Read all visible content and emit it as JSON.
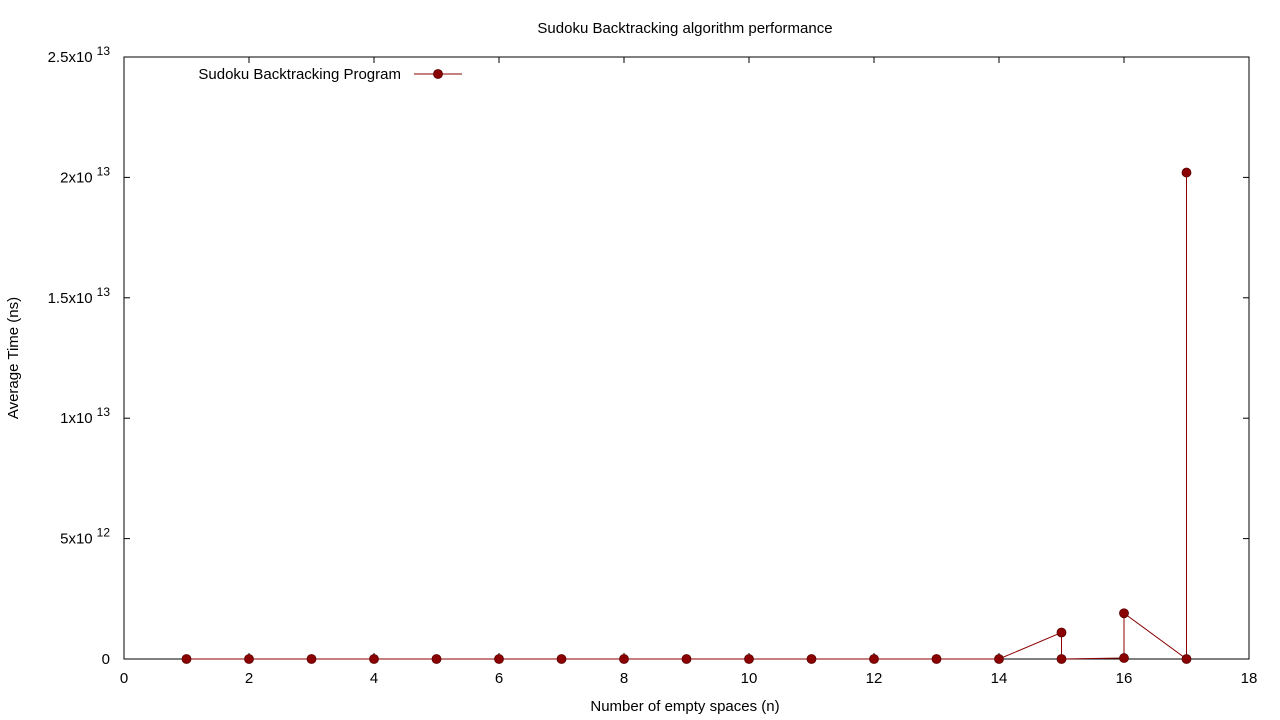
{
  "chart_data": {
    "type": "line",
    "title": "Sudoku Backtracking algorithm performance",
    "xlabel": "Number of empty spaces (n)",
    "ylabel": "Average Time (ns)",
    "xlim": [
      0,
      18
    ],
    "ylim": [
      0,
      25000000000000
    ],
    "x_ticks": [
      0,
      2,
      4,
      6,
      8,
      10,
      12,
      14,
      16,
      18
    ],
    "y_ticks": [
      {
        "value": 0,
        "base": "0",
        "exp": ""
      },
      {
        "value": 5000000000000,
        "base": "5x10",
        "exp": "12"
      },
      {
        "value": 10000000000000,
        "base": "1x10",
        "exp": "13"
      },
      {
        "value": 15000000000000,
        "base": "1.5x10",
        "exp": "13"
      },
      {
        "value": 20000000000000,
        "base": "2x10",
        "exp": "13"
      },
      {
        "value": 25000000000000,
        "base": "2.5x10",
        "exp": "13"
      }
    ],
    "grid": false,
    "legend_position": "top-left",
    "series": [
      {
        "name": "Sudoku Backtracking Program",
        "color": "#8b0000",
        "points": [
          [
            1,
            0
          ],
          [
            2,
            0
          ],
          [
            3,
            0
          ],
          [
            4,
            0
          ],
          [
            5,
            0
          ],
          [
            6,
            0
          ],
          [
            7,
            0
          ],
          [
            8,
            0
          ],
          [
            9,
            0
          ],
          [
            10,
            0
          ],
          [
            11,
            0
          ],
          [
            12,
            0
          ],
          [
            13,
            0
          ],
          [
            14,
            0
          ],
          [
            15,
            1100000000000
          ],
          [
            15,
            0
          ],
          [
            16,
            40000000000
          ],
          [
            16,
            1900000000000
          ],
          [
            17,
            0
          ],
          [
            17,
            20200000000000
          ]
        ]
      }
    ]
  }
}
